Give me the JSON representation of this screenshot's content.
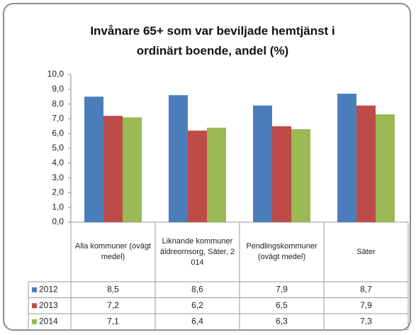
{
  "chart_data": {
    "type": "bar",
    "title": "Invånare 65+ som var beviljade hemtjänst i ordinärt boende, andel (%)",
    "categories": [
      "Alla kommuner (ovägt medel)",
      "Liknande kommuner äldreomsorg, Säter, 2014",
      "Pendlingskommuner (ovägt medel)",
      "Säter"
    ],
    "series": [
      {
        "name": "2012",
        "color": "#4a7ebb",
        "values": [
          8.5,
          8.6,
          7.9,
          8.7
        ],
        "value_labels": [
          "8,5",
          "8,6",
          "7,9",
          "8,7"
        ]
      },
      {
        "name": "2013",
        "color": "#be4b48",
        "values": [
          7.2,
          6.2,
          6.5,
          7.9
        ],
        "value_labels": [
          "7,2",
          "6,2",
          "6,5",
          "7,9"
        ]
      },
      {
        "name": "2014",
        "color": "#98b954",
        "values": [
          7.1,
          6.4,
          6.3,
          7.3
        ],
        "value_labels": [
          "7,1",
          "6,4",
          "6,3",
          "7,3"
        ]
      }
    ],
    "ylim": [
      0,
      10
    ],
    "yticks": [
      {
        "value": 0,
        "label": "0,0"
      },
      {
        "value": 1,
        "label": "1,0"
      },
      {
        "value": 2,
        "label": "2,0"
      },
      {
        "value": 3,
        "label": "3,0"
      },
      {
        "value": 4,
        "label": "4,0"
      },
      {
        "value": 5,
        "label": "5,0"
      },
      {
        "value": 6,
        "label": "6,0"
      },
      {
        "value": 7,
        "label": "7,0"
      },
      {
        "value": 8,
        "label": "8,0"
      },
      {
        "value": 9,
        "label": "9,0"
      },
      {
        "value": 10,
        "label": "10,0"
      }
    ],
    "grid": false
  }
}
